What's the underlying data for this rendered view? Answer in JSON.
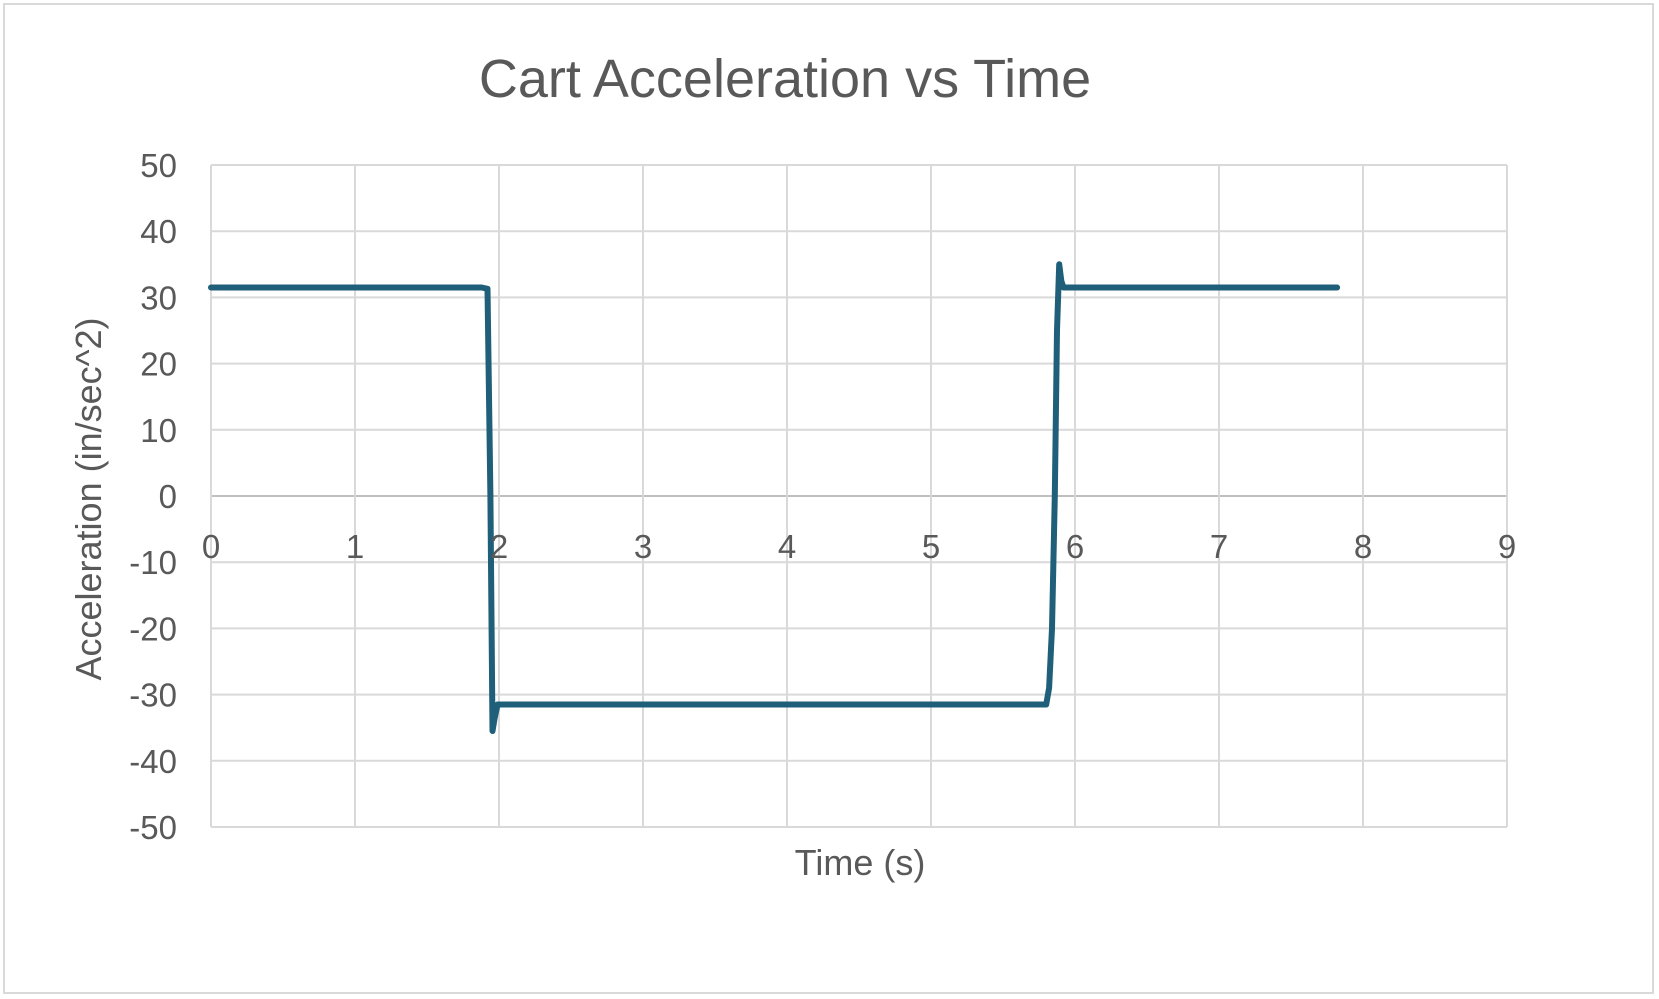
{
  "chart_data": {
    "type": "line",
    "title": "Cart Acceleration vs Time",
    "xlabel": "Time (s)",
    "ylabel": "Acceleration (in/sec^2)",
    "xlim": [
      0,
      9
    ],
    "ylim": [
      -50,
      50
    ],
    "x_ticks": [
      0,
      1,
      2,
      3,
      4,
      5,
      6,
      7,
      8,
      9
    ],
    "y_ticks": [
      50,
      40,
      30,
      20,
      10,
      0,
      -10,
      -20,
      -30,
      -40,
      -50
    ],
    "x_tick_labels": [
      "0",
      "1",
      "2",
      "3",
      "4",
      "5",
      "6",
      "7",
      "8",
      "9"
    ],
    "y_tick_labels": [
      "50",
      "40",
      "30",
      "20",
      "10",
      "0",
      "-10",
      "-20",
      "-30",
      "-40",
      "-50"
    ],
    "grid": true,
    "legend": "none",
    "series": [
      {
        "color": "#1f5f7a",
        "points": [
          [
            0,
            31.5
          ],
          [
            1.88,
            31.5
          ],
          [
            1.92,
            31.3
          ],
          [
            1.94,
            0
          ],
          [
            1.955,
            -35.5
          ],
          [
            1.97,
            -33.5
          ],
          [
            1.99,
            -31.5
          ],
          [
            5.8,
            -31.5
          ],
          [
            5.82,
            -29
          ],
          [
            5.84,
            -20
          ],
          [
            5.86,
            0
          ],
          [
            5.875,
            25
          ],
          [
            5.89,
            35
          ],
          [
            5.905,
            32.5
          ],
          [
            5.92,
            31.5
          ],
          [
            7.82,
            31.5
          ]
        ]
      }
    ]
  }
}
